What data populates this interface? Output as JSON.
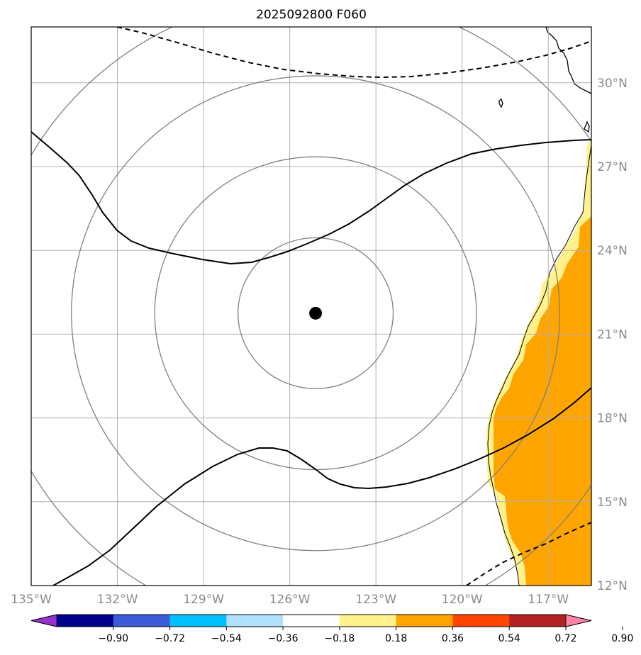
{
  "title": "2025092800 F060",
  "colors": {
    "land_fill": "#ffa500",
    "land_edge": "#fff18c",
    "grid": "#b0b0b0",
    "rings": "#808080",
    "contour": "#000000",
    "tick_text": "#8a8a8a"
  },
  "map": {
    "lon_range": [
      -135,
      -115.5
    ],
    "lat_range": [
      12,
      32
    ],
    "lon_ticks": [
      {
        "value": -135,
        "label": "135°W"
      },
      {
        "value": -132,
        "label": "132°W"
      },
      {
        "value": -129,
        "label": "129°W"
      },
      {
        "value": -126,
        "label": "126°W"
      },
      {
        "value": -123,
        "label": "123°W"
      },
      {
        "value": -120,
        "label": "120°W"
      },
      {
        "value": -117,
        "label": "117°W"
      }
    ],
    "lat_ticks": [
      {
        "value": 30,
        "label": "30°N"
      },
      {
        "value": 27,
        "label": "27°N"
      },
      {
        "value": 24,
        "label": "24°N"
      },
      {
        "value": 21,
        "label": "21°N"
      },
      {
        "value": 18,
        "label": "18°N"
      },
      {
        "value": 15,
        "label": "15°N"
      },
      {
        "value": 12,
        "label": "12°N"
      }
    ],
    "center": {
      "lon": -125.1,
      "lat": 21.75
    },
    "range_rings_deg": [
      2.7,
      5.6,
      8.5,
      11.4
    ]
  },
  "colorbar": {
    "colors": [
      "#9932cc",
      "#00008b",
      "#3b5bd9",
      "#00bfff",
      "#b0e2ff",
      "#ffffff",
      "#fff18c",
      "#ffa500",
      "#ff4500",
      "#b22222",
      "#ff85a8"
    ],
    "labels": [
      "−0.90",
      "−0.72",
      "−0.54",
      "−0.36",
      "−0.18",
      "0.18",
      "0.36",
      "0.54",
      "0.72",
      "0.90"
    ]
  }
}
